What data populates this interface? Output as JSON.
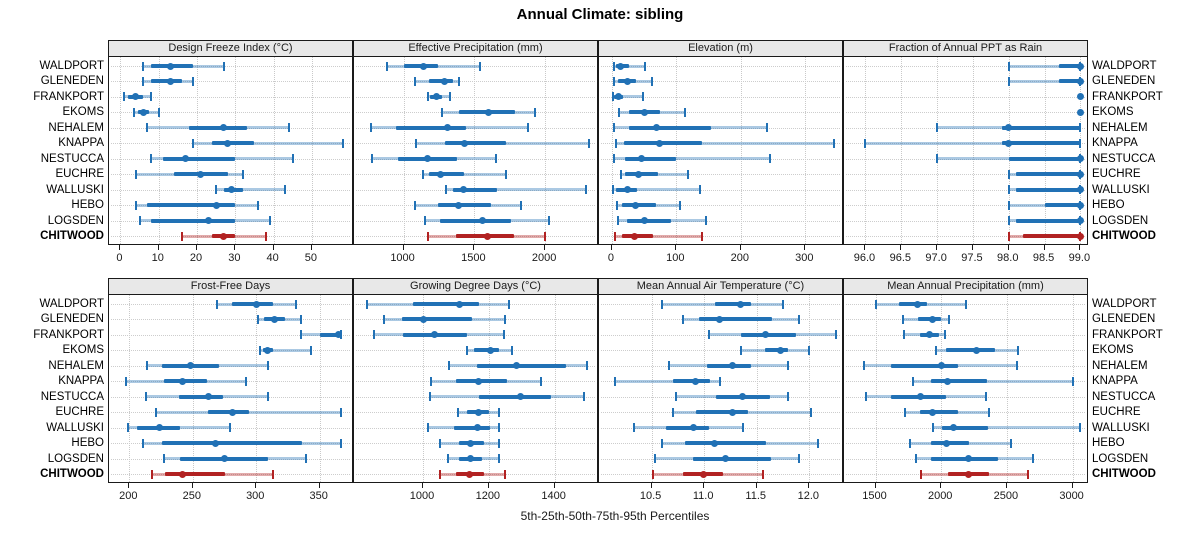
{
  "title": "Annual Climate: sibling",
  "caption": "5th-25th-50th-75th-95th Percentiles",
  "sites": [
    "WALDPORT",
    "GLENEDEN",
    "FRANKPORT",
    "EKOMS",
    "NEHALEM",
    "KNAPPA",
    "NESTUCCA",
    "EUCHRE",
    "WALLUSKI",
    "HEBO",
    "LOGSDEN",
    "CHITWOOD"
  ],
  "highlight_site": "CHITWOOD",
  "colors": {
    "series_line": "#2171b5",
    "series_band": "rgba(33,113,181,0.38)",
    "highlight_line": "#b22222",
    "highlight_band": "rgba(178,34,34,0.38)",
    "strip_bg": "#e8e8e8",
    "grid": "#c9c9c9",
    "border": "#1a1a1a"
  },
  "percentiles": [
    "5th",
    "25th",
    "50th",
    "75th",
    "95th"
  ],
  "chart_data": [
    {
      "type": "percentile-range",
      "title": "Design Freeze Index (°C)",
      "row": 0,
      "col": 0,
      "xlim": [
        -3,
        61
      ],
      "ticks": [
        {
          "v": 0,
          "label": "0"
        },
        {
          "v": 10,
          "label": "10"
        },
        {
          "v": 20,
          "label": "20"
        },
        {
          "v": 30,
          "label": "30"
        },
        {
          "v": 40,
          "label": "40"
        },
        {
          "v": 50,
          "label": "50"
        }
      ],
      "values": [
        [
          6,
          8,
          13,
          19,
          27
        ],
        [
          6,
          8,
          13,
          16,
          19
        ],
        [
          1,
          2,
          4,
          6,
          8
        ],
        [
          3.5,
          4.5,
          6,
          7.5,
          10
        ],
        [
          7,
          18,
          27,
          33,
          44
        ],
        [
          19,
          24,
          28,
          35,
          58
        ],
        [
          8,
          11,
          17,
          30,
          45
        ],
        [
          4,
          14,
          21,
          28,
          32
        ],
        [
          25,
          27,
          29,
          32,
          43
        ],
        [
          4,
          7,
          25,
          30,
          36
        ],
        [
          5,
          8,
          23,
          30,
          39
        ],
        [
          16,
          24,
          27,
          30,
          38
        ]
      ]
    },
    {
      "type": "percentile-range",
      "title": "Effective Precipitation (mm)",
      "row": 0,
      "col": 1,
      "xlim": [
        650,
        2380
      ],
      "ticks": [
        {
          "v": 1000,
          "label": "1000"
        },
        {
          "v": 1500,
          "label": "1500"
        },
        {
          "v": 2000,
          "label": "2000"
        }
      ],
      "values": [
        [
          880,
          1000,
          1140,
          1240,
          1540
        ],
        [
          1080,
          1180,
          1290,
          1350,
          1390
        ],
        [
          1170,
          1190,
          1230,
          1270,
          1330
        ],
        [
          1270,
          1390,
          1600,
          1790,
          1930
        ],
        [
          770,
          950,
          1310,
          1440,
          1880
        ],
        [
          1090,
          1290,
          1430,
          1720,
          2310
        ],
        [
          780,
          960,
          1170,
          1380,
          1650
        ],
        [
          1140,
          1180,
          1260,
          1430,
          1720
        ],
        [
          1300,
          1350,
          1420,
          1660,
          2290
        ],
        [
          1080,
          1240,
          1390,
          1620,
          1830
        ],
        [
          1150,
          1260,
          1560,
          1760,
          2030
        ],
        [
          1170,
          1370,
          1590,
          1780,
          2000
        ]
      ]
    },
    {
      "type": "percentile-range",
      "title": "Elevation (m)",
      "row": 0,
      "col": 2,
      "xlim": [
        -20,
        360
      ],
      "ticks": [
        {
          "v": 0,
          "label": "0"
        },
        {
          "v": 100,
          "label": "100"
        },
        {
          "v": 200,
          "label": "200"
        },
        {
          "v": 300,
          "label": "300"
        }
      ],
      "values": [
        [
          3,
          7,
          14,
          26,
          52
        ],
        [
          4,
          9,
          24,
          37,
          62
        ],
        [
          2,
          4,
          11,
          18,
          49
        ],
        [
          11,
          26,
          51,
          74,
          114
        ],
        [
          4,
          26,
          69,
          154,
          241
        ],
        [
          7,
          18,
          74,
          140,
          344
        ],
        [
          4,
          21,
          46,
          100,
          245
        ],
        [
          14,
          21,
          42,
          71,
          118
        ],
        [
          2,
          7,
          24,
          39,
          137
        ],
        [
          8,
          16,
          37,
          69,
          105
        ],
        [
          9,
          24,
          51,
          91,
          146
        ],
        [
          5,
          16,
          35,
          63,
          139
        ]
      ]
    },
    {
      "type": "percentile-range",
      "title": "Fraction of Annual PPT as Rain",
      "row": 0,
      "col": 3,
      "xlim": [
        95.7,
        99.12
      ],
      "ticks": [
        {
          "v": 96,
          "label": "96.0"
        },
        {
          "v": 96.5,
          "label": "96.5"
        },
        {
          "v": 97,
          "label": "97.0"
        },
        {
          "v": 97.5,
          "label": "97.5"
        },
        {
          "v": 98,
          "label": "98.0"
        },
        {
          "v": 98.5,
          "label": "98.5"
        },
        {
          "v": 99,
          "label": "99.0"
        }
      ],
      "values": [
        [
          98.0,
          98.7,
          99.0,
          99.0,
          99.0
        ],
        [
          98.0,
          98.7,
          99.0,
          99.0,
          99.0
        ],
        [
          99.0,
          99.0,
          99.0,
          99.0,
          99.0
        ],
        [
          99.0,
          99.0,
          99.0,
          99.0,
          99.0
        ],
        [
          97.0,
          97.9,
          98.0,
          99.0,
          99.0
        ],
        [
          96.0,
          97.9,
          98.0,
          99.0,
          99.0
        ],
        [
          97.0,
          98.0,
          99.0,
          99.0,
          99.0
        ],
        [
          98.0,
          98.1,
          99.0,
          99.0,
          99.0
        ],
        [
          98.0,
          98.1,
          99.0,
          99.0,
          99.0
        ],
        [
          98.0,
          98.5,
          99.0,
          99.0,
          99.0
        ],
        [
          98.0,
          98.1,
          99.0,
          99.0,
          99.0
        ],
        [
          98.0,
          98.2,
          99.0,
          99.0,
          99.0
        ]
      ]
    },
    {
      "type": "percentile-range",
      "title": "Frost-Free Days",
      "row": 1,
      "col": 0,
      "xlim": [
        184,
        377
      ],
      "ticks": [
        {
          "v": 200,
          "label": "200"
        },
        {
          "v": 250,
          "label": "250"
        },
        {
          "v": 300,
          "label": "300"
        },
        {
          "v": 350,
          "label": "350"
        }
      ],
      "values": [
        [
          269,
          281,
          300,
          313,
          331
        ],
        [
          301,
          306,
          314,
          323,
          335
        ],
        [
          335,
          350,
          365,
          366,
          367
        ],
        [
          303,
          305,
          309,
          313,
          343
        ],
        [
          214,
          226,
          248,
          271,
          309
        ],
        [
          197,
          227,
          242,
          261,
          292
        ],
        [
          213,
          239,
          262,
          274,
          309
        ],
        [
          221,
          262,
          281,
          294,
          367
        ],
        [
          199,
          206,
          224,
          240,
          279
        ],
        [
          211,
          226,
          268,
          336,
          367
        ],
        [
          227,
          240,
          275,
          309,
          339
        ],
        [
          218,
          228,
          242,
          275,
          313
        ]
      ]
    },
    {
      "type": "percentile-range",
      "title": "Growing Degree Days (°C)",
      "row": 1,
      "col": 1,
      "xlim": [
        790,
        1535
      ],
      "ticks": [
        {
          "v": 1000,
          "label": "1000"
        },
        {
          "v": 1200,
          "label": "1200"
        },
        {
          "v": 1400,
          "label": "1400"
        }
      ],
      "values": [
        [
          830,
          970,
          1110,
          1170,
          1260
        ],
        [
          880,
          935,
          1000,
          1150,
          1250
        ],
        [
          850,
          940,
          1035,
          1135,
          1245
        ],
        [
          1135,
          1155,
          1205,
          1230,
          1270
        ],
        [
          1080,
          1165,
          1285,
          1435,
          1500
        ],
        [
          1025,
          1100,
          1170,
          1255,
          1360
        ],
        [
          1020,
          1170,
          1295,
          1390,
          1490
        ],
        [
          1105,
          1135,
          1170,
          1200,
          1230
        ],
        [
          1015,
          1095,
          1165,
          1205,
          1230
        ],
        [
          1050,
          1110,
          1145,
          1185,
          1230
        ],
        [
          1075,
          1110,
          1145,
          1180,
          1230
        ],
        [
          1050,
          1100,
          1140,
          1185,
          1250
        ]
      ]
    },
    {
      "type": "percentile-range",
      "title": "Mean Annual Air Temperature (°C)",
      "row": 1,
      "col": 2,
      "xlim": [
        10.0,
        12.33
      ],
      "ticks": [
        {
          "v": 10.5,
          "label": "10.5"
        },
        {
          "v": 11,
          "label": "11.0"
        },
        {
          "v": 11.5,
          "label": "11.5"
        },
        {
          "v": 12,
          "label": "12.0"
        }
      ],
      "values": [
        [
          10.6,
          11.1,
          11.35,
          11.45,
          11.75
        ],
        [
          10.8,
          10.95,
          11.15,
          11.65,
          11.9
        ],
        [
          11.05,
          11.35,
          11.58,
          11.87,
          12.25
        ],
        [
          11.35,
          11.58,
          11.73,
          11.8,
          12.0
        ],
        [
          10.67,
          11.03,
          11.27,
          11.45,
          11.8
        ],
        [
          10.15,
          10.7,
          10.92,
          11.06,
          11.15
        ],
        [
          10.73,
          11.11,
          11.36,
          11.63,
          11.8
        ],
        [
          10.7,
          10.92,
          11.27,
          11.42,
          12.02
        ],
        [
          10.33,
          10.64,
          10.9,
          11.05,
          11.37
        ],
        [
          10.6,
          10.82,
          11.1,
          11.59,
          12.08
        ],
        [
          10.53,
          10.89,
          11.2,
          11.64,
          11.9
        ],
        [
          10.51,
          10.8,
          10.99,
          11.18,
          11.56
        ]
      ]
    },
    {
      "type": "percentile-range",
      "title": "Mean Annual Precipitation (mm)",
      "row": 1,
      "col": 3,
      "xlim": [
        1260,
        3125
      ],
      "ticks": [
        {
          "v": 1500,
          "label": "1500"
        },
        {
          "v": 2000,
          "label": "2000"
        },
        {
          "v": 2500,
          "label": "2500"
        },
        {
          "v": 3000,
          "label": "3000"
        }
      ],
      "values": [
        [
          1500,
          1680,
          1820,
          1890,
          2190
        ],
        [
          1710,
          1820,
          1930,
          2000,
          2060
        ],
        [
          1720,
          1835,
          1910,
          1980,
          2030
        ],
        [
          1960,
          2040,
          2270,
          2410,
          2585
        ],
        [
          1410,
          1620,
          2005,
          2130,
          2580
        ],
        [
          1785,
          1920,
          2050,
          2350,
          3000
        ],
        [
          1430,
          1620,
          1845,
          2040,
          2340
        ],
        [
          1725,
          1835,
          1930,
          2130,
          2365
        ],
        [
          1935,
          2005,
          2090,
          2360,
          3060
        ],
        [
          1765,
          1920,
          2040,
          2215,
          2535
        ],
        [
          1805,
          1920,
          2205,
          2435,
          2695
        ],
        [
          1845,
          2050,
          2205,
          2365,
          2660
        ]
      ]
    }
  ]
}
